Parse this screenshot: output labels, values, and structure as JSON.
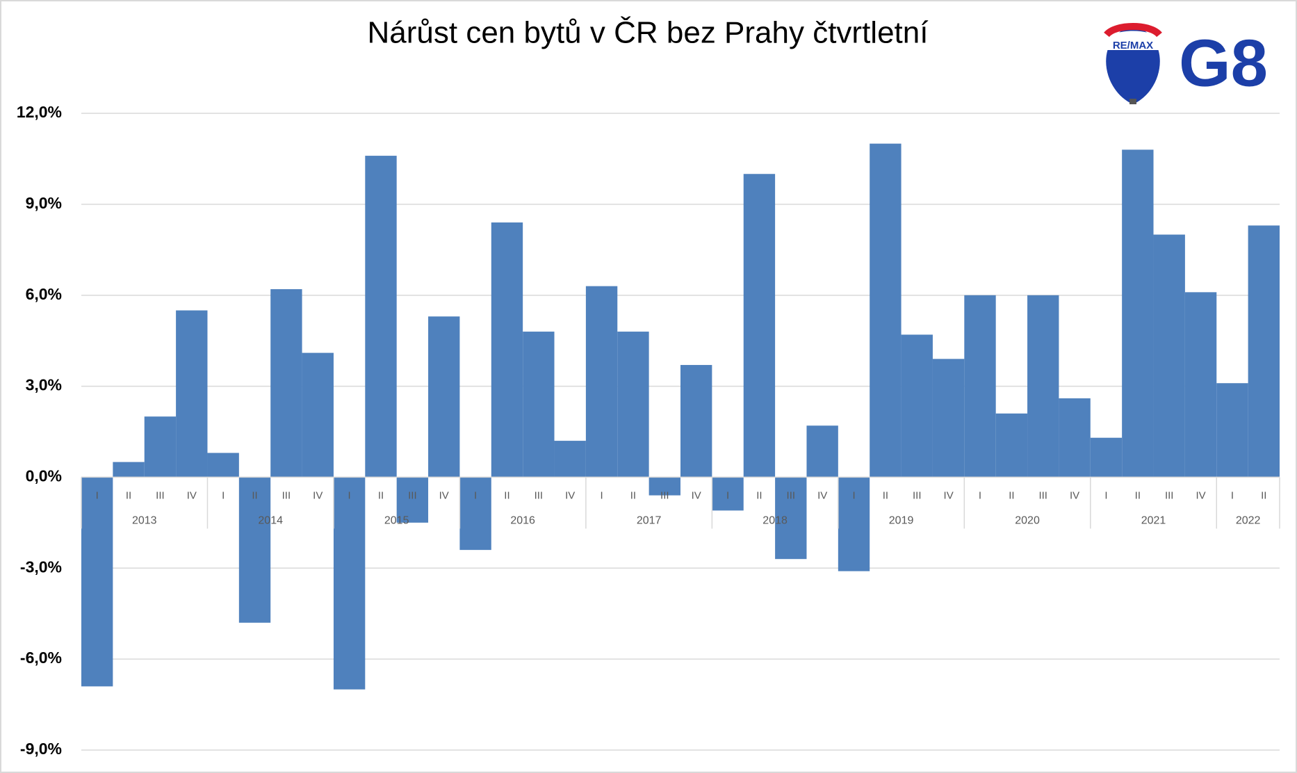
{
  "chart_data": {
    "type": "bar",
    "title": "Nárůst cen bytů v ČR bez Prahy čtvrtletní",
    "categories": [
      "I",
      "II",
      "III",
      "IV",
      "I",
      "II",
      "III",
      "IV",
      "I",
      "II",
      "III",
      "IV",
      "I",
      "II",
      "III",
      "IV",
      "I",
      "II",
      "III",
      "IV",
      "I",
      "II",
      "III",
      "IV",
      "I",
      "II",
      "III",
      "IV",
      "I",
      "II",
      "III",
      "IV",
      "I",
      "II",
      "III",
      "IV",
      "I",
      "II"
    ],
    "category_groups": [
      "2013",
      "2014",
      "2015",
      "2016",
      "2017",
      "2018",
      "2019",
      "2020",
      "2021",
      "2022"
    ],
    "values": [
      -6.9,
      0.5,
      2.0,
      5.5,
      0.8,
      -4.8,
      6.2,
      4.1,
      -7.0,
      10.6,
      -1.5,
      5.3,
      -2.4,
      8.4,
      4.8,
      1.2,
      6.3,
      4.8,
      -0.6,
      3.7,
      -1.1,
      10.0,
      -2.7,
      1.7,
      -3.1,
      11.0,
      4.7,
      3.9,
      6.0,
      2.1,
      6.0,
      2.6,
      1.3,
      10.8,
      8.0,
      6.1,
      3.1,
      8.3
    ],
    "color": "#4f81bd",
    "ylim": [
      -9,
      12
    ],
    "yticks": [
      {
        "value": -9,
        "label": "-9,0%"
      },
      {
        "value": -6,
        "label": "-6,0%"
      },
      {
        "value": -3,
        "label": "-3,0%"
      },
      {
        "value": 0,
        "label": "0,0%"
      },
      {
        "value": 3,
        "label": "3,0%"
      },
      {
        "value": 6,
        "label": "6,0%"
      },
      {
        "value": 9,
        "label": "9,0%"
      },
      {
        "value": 12,
        "label": "12,0%"
      }
    ],
    "grid": true
  },
  "logo": {
    "balloon_text": "RE/MAX",
    "brand": "G8"
  }
}
